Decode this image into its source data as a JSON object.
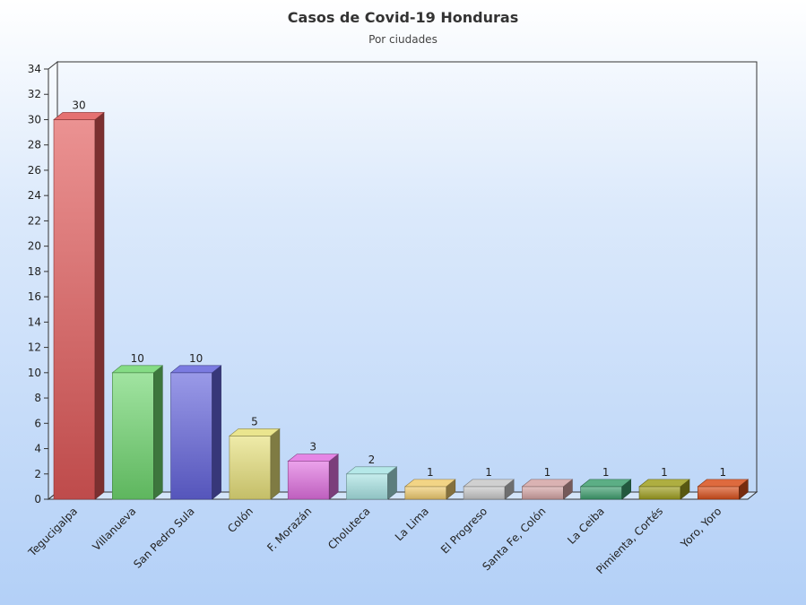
{
  "chart_data": {
    "type": "bar",
    "title": "Casos de Covid-19 Honduras",
    "subtitle": "Por ciudades",
    "xlabel": "",
    "ylabel": "",
    "ylim": [
      0,
      34
    ],
    "yticks": [
      0,
      2,
      4,
      6,
      8,
      10,
      12,
      14,
      16,
      18,
      20,
      22,
      24,
      26,
      28,
      30,
      32,
      34
    ],
    "grid": false,
    "legend": "none",
    "categories": [
      "Tegucigalpa",
      "Villanueva",
      "San Pedro Sula",
      "Colón",
      "F. Morazán",
      "Choluteca",
      "La Lima",
      "El Progreso",
      "Santa Fe, Colón",
      "La Ceiba",
      "Pimienta, Cortés",
      "Yoro, Yoro"
    ],
    "values": [
      30,
      10,
      10,
      5,
      3,
      2,
      1,
      1,
      1,
      1,
      1,
      1
    ],
    "colors": [
      "#e05858",
      "#6fd66f",
      "#6464dc",
      "#e6e07a",
      "#e070e0",
      "#a8e4e4",
      "#f0cc70",
      "#c8c8c8",
      "#d4a4a4",
      "#3fa070",
      "#a0a020",
      "#d8501c"
    ]
  }
}
